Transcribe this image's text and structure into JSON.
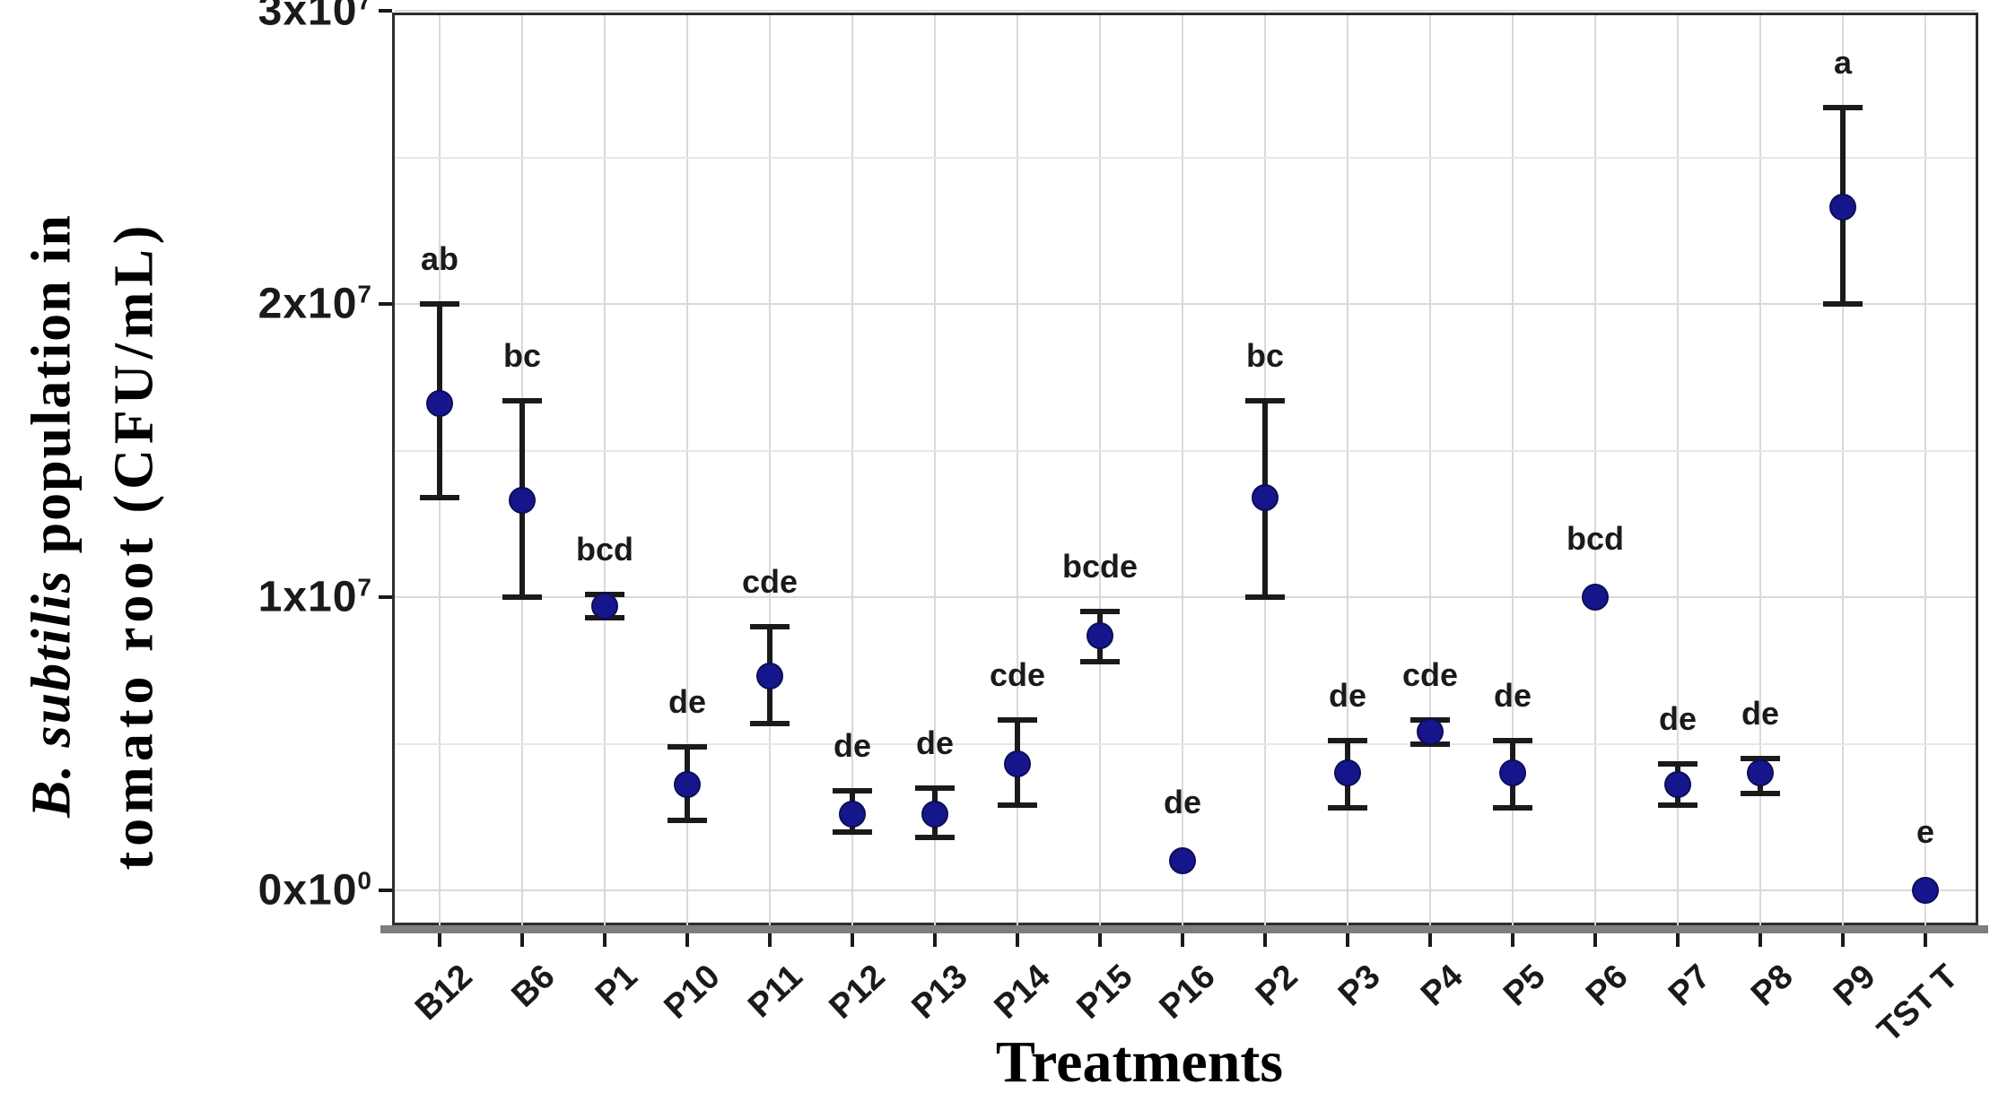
{
  "chart_data": {
    "type": "scatter",
    "title": "",
    "xlabel": "Treatments",
    "ylabel_line1_italic": "B. subtilis",
    "ylabel_line1_rest": " population in",
    "ylabel_line2": "tomato root (CFU/mL)",
    "ylim": [
      0,
      30000000
    ],
    "grid": true,
    "legend_position": "none",
    "marker_color": "#16168c",
    "errorbar_color": "#1a1a1a",
    "y_ticks": [
      {
        "base": "0x10",
        "sup": "0",
        "value": 0
      },
      {
        "base": "1x10",
        "sup": "7",
        "value": 10000000
      },
      {
        "base": "2x10",
        "sup": "7",
        "value": 20000000
      },
      {
        "base": "3x10",
        "sup": "7",
        "value": 30000000
      }
    ],
    "y_minor_gridlines": [
      5000000,
      15000000,
      25000000
    ],
    "categories": [
      "B12",
      "B6",
      "P1",
      "P10",
      "P11",
      "P12",
      "P13",
      "P14",
      "P15",
      "P16",
      "P2",
      "P3",
      "P4",
      "P5",
      "P6",
      "P7",
      "P8",
      "P9",
      "TST T"
    ],
    "points": [
      {
        "treatment": "B12",
        "value": 16600000,
        "err_low": 13400000,
        "err_high": 20000000,
        "letter": "ab"
      },
      {
        "treatment": "B6",
        "value": 13300000,
        "err_low": 10000000,
        "err_high": 16700000,
        "letter": "bc"
      },
      {
        "treatment": "P1",
        "value": 9700000,
        "err_low": 9300000,
        "err_high": 10100000,
        "letter": "bcd"
      },
      {
        "treatment": "P10",
        "value": 3600000,
        "err_low": 2400000,
        "err_high": 4900000,
        "letter": "de"
      },
      {
        "treatment": "P11",
        "value": 7300000,
        "err_low": 5700000,
        "err_high": 9000000,
        "letter": "cde"
      },
      {
        "treatment": "P12",
        "value": 2600000,
        "err_low": 2000000,
        "err_high": 3400000,
        "letter": "de"
      },
      {
        "treatment": "P13",
        "value": 2600000,
        "err_low": 1800000,
        "err_high": 3500000,
        "letter": "de"
      },
      {
        "treatment": "P14",
        "value": 4300000,
        "err_low": 2900000,
        "err_high": 5800000,
        "letter": "cde"
      },
      {
        "treatment": "P15",
        "value": 8700000,
        "err_low": 7800000,
        "err_high": 9500000,
        "letter": "bcde"
      },
      {
        "treatment": "P16",
        "value": 1000000,
        "err_low": null,
        "err_high": null,
        "letter": "de"
      },
      {
        "treatment": "P2",
        "value": 13400000,
        "err_low": 10000000,
        "err_high": 16700000,
        "letter": "bc"
      },
      {
        "treatment": "P3",
        "value": 4000000,
        "err_low": 2800000,
        "err_high": 5100000,
        "letter": "de"
      },
      {
        "treatment": "P4",
        "value": 5400000,
        "err_low": 5000000,
        "err_high": 5800000,
        "letter": "cde"
      },
      {
        "treatment": "P5",
        "value": 4000000,
        "err_low": 2800000,
        "err_high": 5100000,
        "letter": "de"
      },
      {
        "treatment": "P6",
        "value": 10000000,
        "err_low": null,
        "err_high": null,
        "letter": "bcd"
      },
      {
        "treatment": "P7",
        "value": 3600000,
        "err_low": 2900000,
        "err_high": 4300000,
        "letter": "de"
      },
      {
        "treatment": "P8",
        "value": 4000000,
        "err_low": 3300000,
        "err_high": 4500000,
        "letter": "de"
      },
      {
        "treatment": "P9",
        "value": 23300000,
        "err_low": 20000000,
        "err_high": 26700000,
        "letter": "a"
      },
      {
        "treatment": "TST T",
        "value": 0,
        "err_low": null,
        "err_high": null,
        "letter": "e"
      }
    ]
  }
}
